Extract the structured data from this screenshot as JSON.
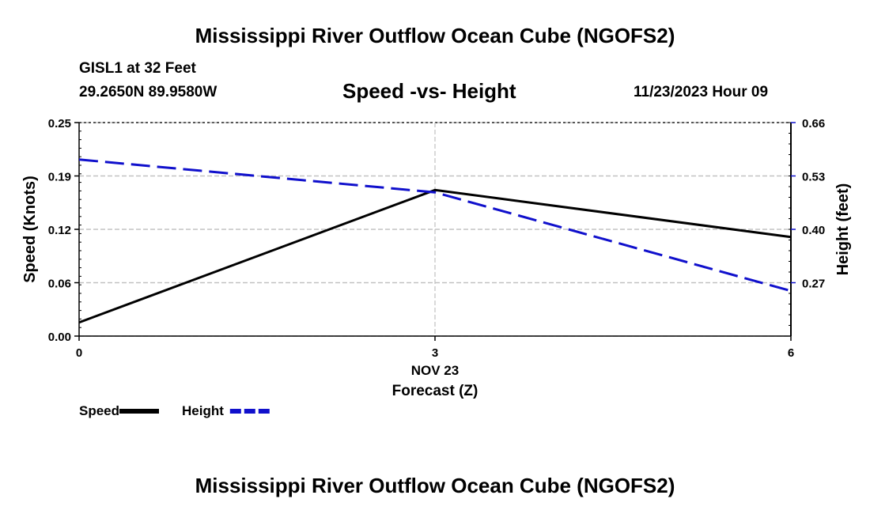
{
  "header": {
    "title": "Mississippi River Outflow Ocean Cube (NGOFS2)",
    "station": "GISL1 at 32 Feet",
    "coords": "29.2650N  89.9580W",
    "subtitle": "Speed -vs- Height",
    "datetime": "11/23/2023 Hour 09"
  },
  "footer": {
    "title": "Mississippi River Outflow Ocean Cube (NGOFS2)"
  },
  "chart_data": {
    "type": "line",
    "title": "Speed -vs- Height",
    "xlabel": "Forecast (Z)",
    "date_label": "NOV 23",
    "ylabel_left": "Speed (Knots)",
    "ylabel_right": "Height (feet)",
    "x": [
      0,
      3,
      6
    ],
    "xlim": [
      0,
      6
    ],
    "ylim_left": [
      0,
      0.25
    ],
    "ylim_right": [
      0.14,
      0.66
    ],
    "x_ticks": [
      "0",
      "3",
      "6"
    ],
    "left_ticks": [
      {
        "value": 0.0,
        "label": "0.00"
      },
      {
        "value": 0.0625,
        "label": "0.06"
      },
      {
        "value": 0.125,
        "label": "0.12"
      },
      {
        "value": 0.1875,
        "label": "0.19"
      },
      {
        "value": 0.25,
        "label": "0.25"
      }
    ],
    "right_ticks": [
      {
        "value": 0.27,
        "label": "0.27"
      },
      {
        "value": 0.4,
        "label": "0.40"
      },
      {
        "value": 0.53,
        "label": "0.53"
      },
      {
        "value": 0.66,
        "label": "0.66"
      }
    ],
    "series": [
      {
        "name": "Speed",
        "axis": "left",
        "color": "#000000",
        "dashed": false,
        "values": [
          0.016,
          0.171,
          0.116
        ]
      },
      {
        "name": "Height",
        "axis": "right",
        "color": "#1010cc",
        "dashed": true,
        "values": [
          0.57,
          0.49,
          0.25
        ]
      }
    ],
    "legend": [
      {
        "label": "Speed",
        "color": "#000000",
        "dashed": false
      },
      {
        "label": "Height",
        "color": "#1010cc",
        "dashed": true
      }
    ],
    "grid": true,
    "legend_position": "bottom-left"
  }
}
